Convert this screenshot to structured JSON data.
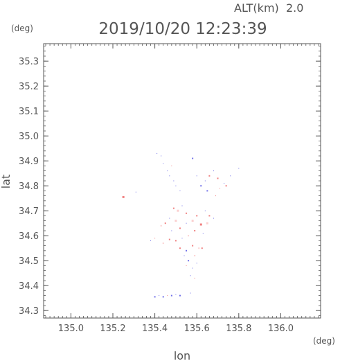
{
  "header": {
    "altitude_label": "ALT(km)  2.0",
    "timestamp": "2019/10/20 12:23:39"
  },
  "chart_data": {
    "type": "scatter",
    "xlabel": "lon",
    "ylabel": "lat",
    "x_unit": "(deg)",
    "y_unit": "(deg)",
    "xlim": [
      134.87,
      136.19
    ],
    "ylim": [
      34.27,
      35.37
    ],
    "x_ticks": [
      135.0,
      135.2,
      135.4,
      135.6,
      135.8,
      136.0
    ],
    "x_tick_labels": [
      "135.0",
      "135.2",
      "135.4",
      "135.6",
      "135.8",
      "136.0"
    ],
    "y_ticks": [
      34.3,
      34.4,
      34.5,
      34.6,
      34.7,
      34.8,
      34.9,
      35.0,
      35.1,
      35.2,
      35.3
    ],
    "y_tick_labels": [
      "34.3",
      "34.4",
      "34.5",
      "34.6",
      "34.7",
      "34.8",
      "34.9",
      "35.0",
      "35.1",
      "35.2",
      "35.3"
    ],
    "colors": {
      "positive": "#f08080",
      "light": "#fbd0d0",
      "negative": "#7070e8",
      "axis": "#555555"
    },
    "points": [
      {
        "x": 135.25,
        "y": 34.755,
        "c": "positive",
        "s": 3
      },
      {
        "x": 135.31,
        "y": 34.775,
        "c": "negative",
        "s": 1
      },
      {
        "x": 135.41,
        "y": 34.93,
        "c": "negative",
        "s": 1
      },
      {
        "x": 135.43,
        "y": 34.92,
        "c": "negative",
        "s": 1
      },
      {
        "x": 135.44,
        "y": 34.89,
        "c": "negative",
        "s": 1
      },
      {
        "x": 135.46,
        "y": 34.86,
        "c": "negative",
        "s": 1
      },
      {
        "x": 135.47,
        "y": 34.84,
        "c": "negative",
        "s": 1
      },
      {
        "x": 135.48,
        "y": 34.88,
        "c": "positive",
        "s": 1
      },
      {
        "x": 135.49,
        "y": 34.82,
        "c": "negative",
        "s": 1
      },
      {
        "x": 135.5,
        "y": 34.8,
        "c": "negative",
        "s": 1
      },
      {
        "x": 135.52,
        "y": 34.78,
        "c": "negative",
        "s": 1
      },
      {
        "x": 135.58,
        "y": 34.91,
        "c": "negative",
        "s": 2
      },
      {
        "x": 135.6,
        "y": 34.84,
        "c": "negative",
        "s": 1
      },
      {
        "x": 135.62,
        "y": 34.8,
        "c": "negative",
        "s": 2
      },
      {
        "x": 135.64,
        "y": 34.82,
        "c": "negative",
        "s": 1
      },
      {
        "x": 135.65,
        "y": 34.78,
        "c": "negative",
        "s": 2
      },
      {
        "x": 135.66,
        "y": 34.84,
        "c": "positive",
        "s": 2
      },
      {
        "x": 135.68,
        "y": 34.86,
        "c": "negative",
        "s": 1
      },
      {
        "x": 135.7,
        "y": 34.83,
        "c": "positive",
        "s": 2
      },
      {
        "x": 135.71,
        "y": 34.79,
        "c": "positive",
        "s": 1
      },
      {
        "x": 135.73,
        "y": 34.81,
        "c": "negative",
        "s": 1
      },
      {
        "x": 135.74,
        "y": 34.8,
        "c": "positive",
        "s": 2
      },
      {
        "x": 135.76,
        "y": 34.84,
        "c": "negative",
        "s": 1
      },
      {
        "x": 135.8,
        "y": 34.87,
        "c": "negative",
        "s": 1
      },
      {
        "x": 135.69,
        "y": 34.76,
        "c": "positive",
        "s": 1
      },
      {
        "x": 135.49,
        "y": 34.71,
        "c": "positive",
        "s": 2
      },
      {
        "x": 135.51,
        "y": 34.7,
        "c": "light",
        "s": 3
      },
      {
        "x": 135.53,
        "y": 34.72,
        "c": "negative",
        "s": 1
      },
      {
        "x": 135.55,
        "y": 34.69,
        "c": "positive",
        "s": 2
      },
      {
        "x": 135.47,
        "y": 34.67,
        "c": "negative",
        "s": 1
      },
      {
        "x": 135.45,
        "y": 34.65,
        "c": "positive",
        "s": 2
      },
      {
        "x": 135.43,
        "y": 34.64,
        "c": "light",
        "s": 2
      },
      {
        "x": 135.5,
        "y": 34.66,
        "c": "light",
        "s": 3
      },
      {
        "x": 135.48,
        "y": 34.62,
        "c": "negative",
        "s": 1
      },
      {
        "x": 135.52,
        "y": 34.63,
        "c": "positive",
        "s": 2
      },
      {
        "x": 135.55,
        "y": 34.65,
        "c": "negative",
        "s": 1
      },
      {
        "x": 135.58,
        "y": 34.66,
        "c": "light",
        "s": 3
      },
      {
        "x": 135.6,
        "y": 34.68,
        "c": "positive",
        "s": 2
      },
      {
        "x": 135.62,
        "y": 34.645,
        "c": "positive",
        "s": 3
      },
      {
        "x": 135.65,
        "y": 34.65,
        "c": "light",
        "s": 3
      },
      {
        "x": 135.66,
        "y": 34.68,
        "c": "positive",
        "s": 2
      },
      {
        "x": 135.64,
        "y": 34.7,
        "c": "negative",
        "s": 1
      },
      {
        "x": 135.68,
        "y": 34.67,
        "c": "negative",
        "s": 1
      },
      {
        "x": 135.63,
        "y": 34.61,
        "c": "negative",
        "s": 1
      },
      {
        "x": 135.59,
        "y": 34.62,
        "c": "positive",
        "s": 2
      },
      {
        "x": 135.56,
        "y": 34.6,
        "c": "light",
        "s": 2
      },
      {
        "x": 135.53,
        "y": 34.59,
        "c": "negative",
        "s": 1
      },
      {
        "x": 135.5,
        "y": 34.58,
        "c": "positive",
        "s": 2
      },
      {
        "x": 135.47,
        "y": 34.585,
        "c": "positive",
        "s": 2
      },
      {
        "x": 135.44,
        "y": 34.57,
        "c": "light",
        "s": 2
      },
      {
        "x": 135.4,
        "y": 34.59,
        "c": "positive",
        "s": 1
      },
      {
        "x": 135.38,
        "y": 34.58,
        "c": "negative",
        "s": 1
      },
      {
        "x": 135.52,
        "y": 34.55,
        "c": "positive",
        "s": 2
      },
      {
        "x": 135.55,
        "y": 34.54,
        "c": "negative",
        "s": 2
      },
      {
        "x": 135.58,
        "y": 34.56,
        "c": "positive",
        "s": 2
      },
      {
        "x": 135.61,
        "y": 34.55,
        "c": "light",
        "s": 2
      },
      {
        "x": 135.625,
        "y": 34.55,
        "c": "positive",
        "s": 2
      },
      {
        "x": 135.54,
        "y": 34.52,
        "c": "negative",
        "s": 1
      },
      {
        "x": 135.56,
        "y": 34.5,
        "c": "negative",
        "s": 2
      },
      {
        "x": 135.59,
        "y": 34.52,
        "c": "light",
        "s": 2
      },
      {
        "x": 135.6,
        "y": 34.49,
        "c": "negative",
        "s": 1
      },
      {
        "x": 135.58,
        "y": 34.47,
        "c": "negative",
        "s": 1
      },
      {
        "x": 135.55,
        "y": 34.48,
        "c": "positive",
        "s": 1
      },
      {
        "x": 135.57,
        "y": 34.44,
        "c": "negative",
        "s": 1
      },
      {
        "x": 135.59,
        "y": 34.43,
        "c": "positive",
        "s": 1
      },
      {
        "x": 135.4,
        "y": 34.355,
        "c": "negative",
        "s": 2
      },
      {
        "x": 135.42,
        "y": 34.36,
        "c": "negative",
        "s": 1
      },
      {
        "x": 135.44,
        "y": 34.355,
        "c": "negative",
        "s": 2
      },
      {
        "x": 135.46,
        "y": 34.36,
        "c": "positive",
        "s": 1
      },
      {
        "x": 135.48,
        "y": 34.36,
        "c": "negative",
        "s": 2
      },
      {
        "x": 135.5,
        "y": 34.365,
        "c": "negative",
        "s": 1
      },
      {
        "x": 135.52,
        "y": 34.36,
        "c": "negative",
        "s": 2
      },
      {
        "x": 135.57,
        "y": 34.37,
        "c": "negative",
        "s": 1
      }
    ]
  }
}
